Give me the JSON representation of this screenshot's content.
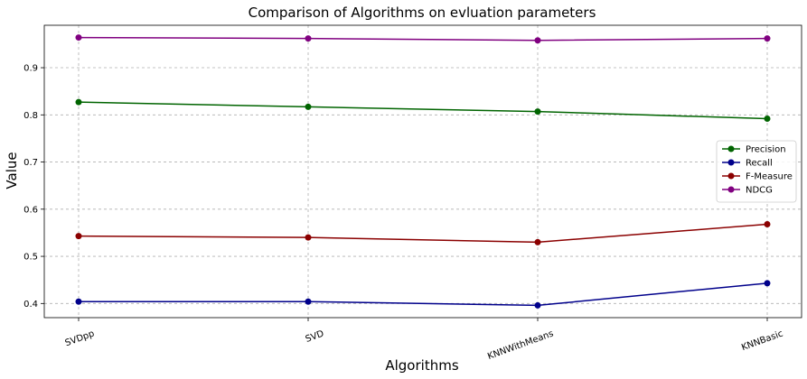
{
  "chart_data": {
    "type": "line",
    "title": "Comparison of Algorithms on evluation parameters",
    "xlabel": "Algorithms",
    "ylabel": "Value",
    "categories": [
      "SVDpp",
      "SVD",
      "KNNWithMeans",
      "KNNBasic"
    ],
    "ylim": [
      0.37,
      0.99
    ],
    "yticks": [
      "0.4",
      "0.5",
      "0.6",
      "0.7",
      "0.8",
      "0.9"
    ],
    "grid": true,
    "legend_position": "center-right",
    "series": [
      {
        "name": "Precision",
        "color": "#006400",
        "values": [
          0.827,
          0.817,
          0.807,
          0.792
        ]
      },
      {
        "name": "Recall",
        "color": "#00008b",
        "values": [
          0.404,
          0.404,
          0.396,
          0.443
        ]
      },
      {
        "name": "F-Measure",
        "color": "#8b0000",
        "values": [
          0.543,
          0.54,
          0.53,
          0.568
        ]
      },
      {
        "name": "NDCG",
        "color": "#800080",
        "values": [
          0.964,
          0.962,
          0.958,
          0.962
        ]
      }
    ]
  }
}
